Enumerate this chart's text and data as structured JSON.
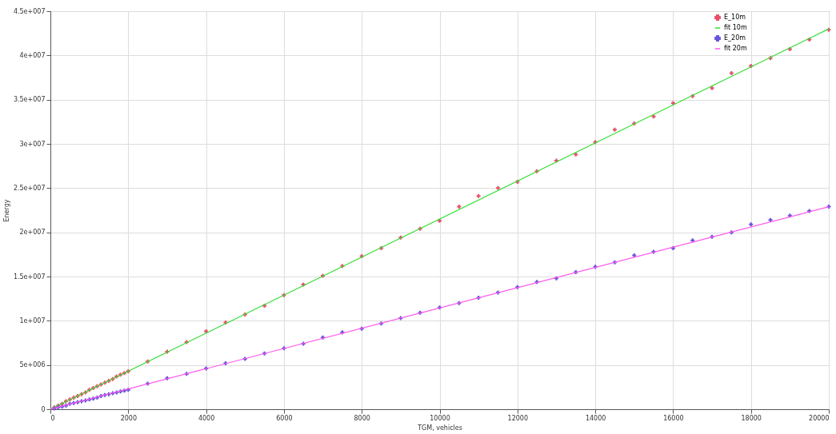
{
  "chart_data": {
    "type": "scatter",
    "xlabel": "TGM, vehicles",
    "ylabel": "Energy",
    "xlim": [
      0,
      20000
    ],
    "xticks": [
      0,
      2000,
      4000,
      6000,
      8000,
      10000,
      12000,
      14000,
      16000,
      18000,
      20000
    ],
    "ylim": [
      0,
      45000000
    ],
    "yticks": [
      0,
      {
        "value": 5000000,
        "label": "5e+006"
      },
      {
        "value": 10000000,
        "label": "1e+007"
      },
      {
        "value": 15000000,
        "label": "1.5e+007"
      },
      {
        "value": 20000000,
        "label": "2e+007"
      },
      {
        "value": 25000000,
        "label": "2.5e+007"
      },
      {
        "value": 30000000,
        "label": "3e+007"
      },
      {
        "value": 35000000,
        "label": "3.5e+007"
      },
      {
        "value": 40000000,
        "label": "4e+007"
      },
      {
        "value": 45000000,
        "label": "4.5e+007"
      }
    ],
    "grid": true,
    "legend": "top right",
    "series": [
      {
        "name": "E_10m",
        "type": "scatter",
        "marker": "cross",
        "color": "#e8506a",
        "x": [
          100,
          200,
          300,
          400,
          500,
          600,
          700,
          800,
          900,
          1000,
          1100,
          1200,
          1300,
          1400,
          1500,
          1600,
          1700,
          1800,
          1900,
          2000,
          2500,
          3000,
          3500,
          4000,
          4500,
          5000,
          5500,
          6000,
          6500,
          7000,
          7500,
          8000,
          8500,
          9000,
          9500,
          10000,
          10500,
          11000,
          11500,
          12000,
          12500,
          13000,
          13500,
          14000,
          14500,
          15000,
          15500,
          16000,
          16500,
          17000,
          17500,
          18000,
          18500,
          19000,
          19500,
          20000
        ],
        "values": [
          200000,
          400000,
          600000,
          900000,
          1100000,
          1300000,
          1500000,
          1700000,
          1900000,
          2200000,
          2400000,
          2600000,
          2800000,
          3000000,
          3200000,
          3400000,
          3700000,
          3900000,
          4100000,
          4300000,
          5400000,
          6500000,
          7600000,
          8800000,
          9800000,
          10700000,
          11700000,
          12900000,
          14100000,
          15100000,
          16200000,
          17300000,
          18200000,
          19400000,
          20400000,
          21300000,
          22900000,
          24100000,
          25000000,
          25700000,
          26900000,
          28100000,
          28800000,
          30200000,
          31600000,
          32300000,
          33100000,
          34600000,
          35400000,
          36300000,
          38000000,
          38800000,
          39700000,
          40700000,
          41800000,
          42900000
        ]
      },
      {
        "name": "fit 10m",
        "type": "line",
        "line_style": "solid",
        "color": "#33dd33",
        "x": [
          0,
          20000
        ],
        "values": [
          0,
          43000000
        ]
      },
      {
        "name": "E_20m",
        "type": "scatter",
        "marker": "cross",
        "color": "#6655dd",
        "x": [
          100,
          200,
          300,
          400,
          500,
          600,
          700,
          800,
          900,
          1000,
          1100,
          1200,
          1300,
          1400,
          1500,
          1600,
          1700,
          1800,
          1900,
          2000,
          2500,
          3000,
          3500,
          4000,
          4500,
          5000,
          5500,
          6000,
          6500,
          7000,
          7500,
          8000,
          8500,
          9000,
          9500,
          10000,
          10500,
          11000,
          11500,
          12000,
          12500,
          13000,
          13500,
          14000,
          14500,
          15000,
          15500,
          16000,
          16500,
          17000,
          17500,
          18000,
          18500,
          19000,
          19500,
          20000
        ],
        "values": [
          100000,
          200000,
          300000,
          400000,
          600000,
          700000,
          800000,
          900000,
          1000000,
          1100000,
          1200000,
          1300000,
          1500000,
          1600000,
          1700000,
          1800000,
          1900000,
          2000000,
          2100000,
          2200000,
          2900000,
          3500000,
          4000000,
          4600000,
          5200000,
          5700000,
          6300000,
          6900000,
          7400000,
          8100000,
          8700000,
          9100000,
          9700000,
          10300000,
          10900000,
          11500000,
          12000000,
          12600000,
          13200000,
          13800000,
          14400000,
          14800000,
          15500000,
          16100000,
          16600000,
          17400000,
          17800000,
          18200000,
          19100000,
          19500000,
          20000000,
          20900000,
          21400000,
          21900000,
          22400000,
          22900000
        ]
      },
      {
        "name": "fit 20m",
        "type": "line",
        "line_style": "solid",
        "color": "#ff55ee",
        "x": [
          0,
          20000
        ],
        "values": [
          0,
          22900000
        ]
      }
    ]
  }
}
